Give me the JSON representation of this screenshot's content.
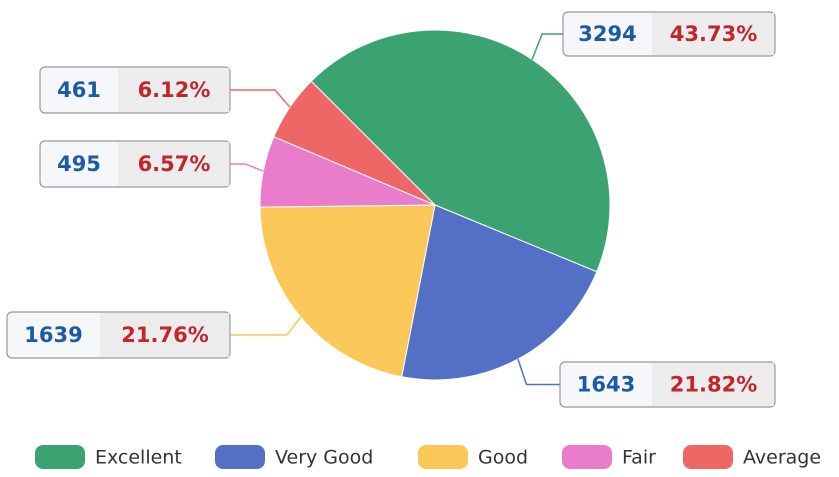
{
  "chart_data": {
    "type": "pie",
    "categories": [
      "Excellent",
      "Very Good",
      "Good",
      "Fair",
      "Average"
    ],
    "values": [
      3294,
      1643,
      1639,
      495,
      461
    ],
    "percentages": [
      43.73,
      21.82,
      21.76,
      6.57,
      6.12
    ],
    "percentage_labels": [
      "43.73%",
      "21.82%",
      "21.76%",
      "6.57%",
      "6.12%"
    ],
    "colors": [
      "#3ba272",
      "#5470c6",
      "#fac858",
      "#ea7ccc",
      "#ee6666"
    ],
    "legend": "bottom"
  }
}
